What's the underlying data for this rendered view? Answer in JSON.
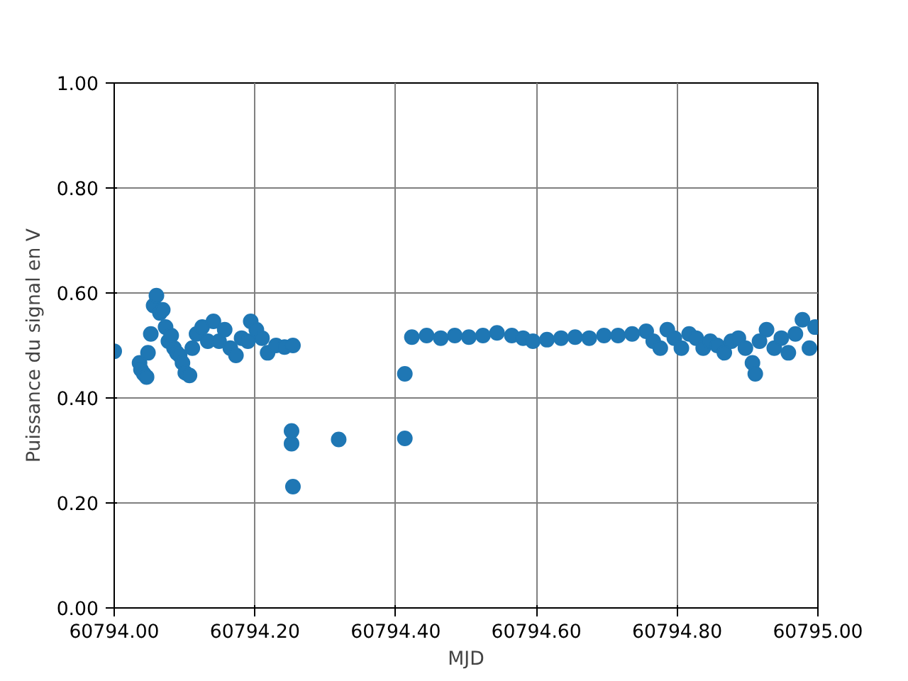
{
  "chart_data": {
    "type": "scatter",
    "xlabel": "MJD",
    "ylabel": "Puissance du signal en V",
    "marker": "circle",
    "grid": true,
    "xlim": [
      60794.0,
      60795.0
    ],
    "xticks": [
      {
        "value": 60794.0,
        "label": "60794.00"
      },
      {
        "value": 60794.2,
        "label": "60794.20"
      },
      {
        "value": 60794.4,
        "label": "60794.40"
      },
      {
        "value": 60794.6,
        "label": "60794.60"
      },
      {
        "value": 60794.8,
        "label": "60794.80"
      },
      {
        "value": 60795.0,
        "label": "60795.00"
      }
    ],
    "ylim": [
      0,
      1
    ],
    "yticks": [
      {
        "value": 0,
        "label": "0.00"
      },
      {
        "value": 0.2,
        "label": "0.20"
      },
      {
        "value": 0.4,
        "label": "0.40"
      },
      {
        "value": 0.6,
        "label": "0.60"
      },
      {
        "value": 0.8,
        "label": "0.80"
      },
      {
        "value": 1.0,
        "label": "1.00"
      }
    ],
    "series": [
      {
        "color": "#1f77b4",
        "x": [
          60794.0,
          60794.036,
          60794.038,
          60794.042,
          60794.046,
          60794.048,
          60794.052,
          60794.056,
          60794.06,
          60794.065,
          60794.069,
          60794.073,
          60794.077,
          60794.081,
          60794.085,
          60794.089,
          60794.093,
          60794.097,
          60794.101,
          60794.107,
          60794.111,
          60794.117,
          60794.125,
          60794.133,
          60794.141,
          60794.149,
          60794.157,
          60794.165,
          60794.173,
          60794.181,
          60794.19,
          60794.194,
          60794.202,
          60794.21,
          60794.218,
          60794.23,
          60794.242,
          60794.254,
          60794.252,
          60794.252,
          60794.254,
          60794.319,
          60794.413,
          60794.413,
          60794.423,
          60794.444,
          60794.464,
          60794.484,
          60794.504,
          60794.524,
          60794.544,
          60794.565,
          60794.581,
          60794.595,
          60794.615,
          60794.635,
          60794.655,
          60794.675,
          60794.696,
          60794.716,
          60794.736,
          60794.756,
          60794.766,
          60794.776,
          60794.786,
          60794.796,
          60794.806,
          60794.817,
          60794.827,
          60794.837,
          60794.847,
          60794.857,
          60794.867,
          60794.877,
          60794.887,
          60794.897,
          60794.907,
          60794.911,
          60794.917,
          60794.927,
          60794.938,
          60794.948,
          60794.958,
          60794.968,
          60794.978,
          60794.988,
          60794.996
        ],
        "values": [
          0.489,
          0.467,
          0.454,
          0.446,
          0.44,
          0.486,
          0.522,
          0.576,
          0.595,
          0.562,
          0.568,
          0.535,
          0.508,
          0.519,
          0.495,
          0.486,
          0.481,
          0.467,
          0.448,
          0.443,
          0.495,
          0.522,
          0.535,
          0.508,
          0.546,
          0.508,
          0.53,
          0.495,
          0.481,
          0.514,
          0.508,
          0.546,
          0.53,
          0.514,
          0.486,
          0.5,
          0.497,
          0.5,
          0.337,
          0.313,
          0.231,
          0.321,
          0.446,
          0.323,
          0.516,
          0.519,
          0.514,
          0.519,
          0.516,
          0.519,
          0.524,
          0.519,
          0.514,
          0.508,
          0.511,
          0.514,
          0.516,
          0.514,
          0.519,
          0.519,
          0.522,
          0.527,
          0.508,
          0.495,
          0.53,
          0.514,
          0.495,
          0.522,
          0.514,
          0.495,
          0.508,
          0.5,
          0.486,
          0.508,
          0.514,
          0.495,
          0.467,
          0.446,
          0.508,
          0.53,
          0.495,
          0.514,
          0.486,
          0.522,
          0.549,
          0.495,
          0.535
        ]
      }
    ]
  }
}
